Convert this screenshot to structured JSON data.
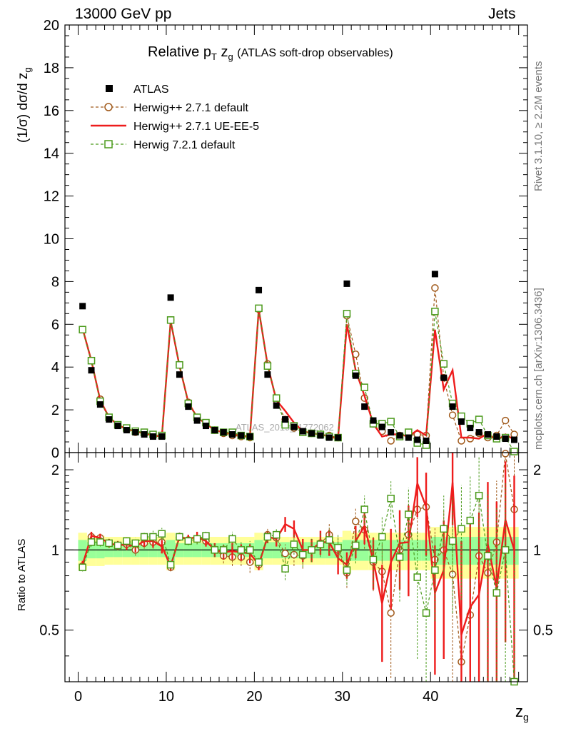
{
  "header": {
    "left": "13000 GeV pp",
    "right": "Jets"
  },
  "side_labels": {
    "rivet": "Rivet 3.1.10, ≥ 2.2M events",
    "mcplots": "mcplots.cern.ch [arXiv:1306.3436]"
  },
  "watermark": "ATLAS_2019_I1772062",
  "chart_data": {
    "type": "scatter",
    "title": "Relative pT zg (ATLAS soft-drop observables)",
    "title_main": "Relative p",
    "title_sub": "T",
    "title_mid": " z",
    "title_sub2": "g",
    "title_small": "(ATLAS soft-drop observables)",
    "xlabel": "z",
    "xlabel_sub": "g",
    "ylabel": "(1/σ) dσ/d z",
    "ylabel_sub": "g",
    "ratio_ylabel": "Ratio to ATLAS",
    "xlim": [
      -1.5,
      51
    ],
    "ylim": [
      0,
      20
    ],
    "ratio_ylim": [
      0.32,
      2.32
    ],
    "x_ticks": [
      0,
      10,
      20,
      30,
      40
    ],
    "y_ticks": [
      0,
      2,
      4,
      6,
      8,
      10,
      12,
      14,
      16,
      18,
      20
    ],
    "ratio_ticks": [
      0.5,
      1,
      2
    ],
    "ratio_tick_labels": [
      "0.5",
      "1",
      "2"
    ],
    "x": [
      0.5,
      1.5,
      2.5,
      3.5,
      4.5,
      5.5,
      6.5,
      7.5,
      8.5,
      9.5,
      10.5,
      11.5,
      12.5,
      13.5,
      14.5,
      15.5,
      16.5,
      17.5,
      18.5,
      19.5,
      20.5,
      21.5,
      22.5,
      23.5,
      24.5,
      25.5,
      26.5,
      27.5,
      28.5,
      29.5,
      30.5,
      31.5,
      32.5,
      33.5,
      34.5,
      35.5,
      36.5,
      37.5,
      38.5,
      39.5,
      40.5,
      41.5,
      42.5,
      43.5,
      44.5,
      45.5,
      46.5,
      47.5,
      48.5,
      49.5
    ],
    "grid": false,
    "legend_position": "top-left",
    "series": [
      {
        "name": "ATLAS",
        "style": "data",
        "color": "#000000",
        "values": [
          6.85,
          3.85,
          2.25,
          1.55,
          1.25,
          1.05,
          0.95,
          0.85,
          0.75,
          0.75,
          7.25,
          3.65,
          2.15,
          1.5,
          1.25,
          1.05,
          0.95,
          0.85,
          0.8,
          0.75,
          7.6,
          3.65,
          2.2,
          1.55,
          1.2,
          1.0,
          0.9,
          0.8,
          0.7,
          0.7,
          7.9,
          3.6,
          2.15,
          1.5,
          1.2,
          0.95,
          0.8,
          0.7,
          0.6,
          0.55,
          8.35,
          3.5,
          2.15,
          1.45,
          1.15,
          0.95,
          0.85,
          0.75,
          0.65,
          0.6
        ],
        "ratio_band_inner": [
          0.09,
          0.07,
          0.07,
          0.06,
          0.06,
          0.06,
          0.06,
          0.06,
          0.06,
          0.06,
          0.09,
          0.06,
          0.06,
          0.06,
          0.06,
          0.06,
          0.06,
          0.06,
          0.06,
          0.06,
          0.09,
          0.07,
          0.07,
          0.07,
          0.07,
          0.07,
          0.07,
          0.07,
          0.07,
          0.07,
          0.09,
          0.09,
          0.09,
          0.09,
          0.09,
          0.09,
          0.09,
          0.09,
          0.09,
          0.09,
          0.12,
          0.12,
          0.12,
          0.12,
          0.12,
          0.12,
          0.12,
          0.12,
          0.12,
          0.12
        ],
        "ratio_band_outer": [
          0.16,
          0.13,
          0.13,
          0.12,
          0.12,
          0.12,
          0.12,
          0.12,
          0.12,
          0.12,
          0.16,
          0.12,
          0.12,
          0.12,
          0.12,
          0.12,
          0.12,
          0.12,
          0.12,
          0.12,
          0.16,
          0.12,
          0.12,
          0.12,
          0.12,
          0.12,
          0.12,
          0.12,
          0.12,
          0.12,
          0.18,
          0.16,
          0.16,
          0.16,
          0.16,
          0.16,
          0.16,
          0.16,
          0.16,
          0.16,
          0.22,
          0.22,
          0.22,
          0.22,
          0.22,
          0.22,
          0.22,
          0.22,
          0.22,
          0.22
        ]
      },
      {
        "name": "Herwig++ 2.7.1 default",
        "style": "circle-dashed",
        "color": "#a0591a",
        "values": [
          5.75,
          4.3,
          2.5,
          1.65,
          1.3,
          1.1,
          0.95,
          0.9,
          0.8,
          0.8,
          6.2,
          4.1,
          2.35,
          1.65,
          1.35,
          1.05,
          0.9,
          0.8,
          0.75,
          0.7,
          6.7,
          4.15,
          2.45,
          1.55,
          1.15,
          0.95,
          0.9,
          0.85,
          0.8,
          0.7,
          6.4,
          4.6,
          2.55,
          1.35,
          1.0,
          0.55,
          0.8,
          0.8,
          0.85,
          0.8,
          7.7,
          3.5,
          1.75,
          0.55,
          0.65,
          0.9,
          0.7,
          0.8,
          1.5,
          0.85
        ],
        "ratio": [
          0.87,
          1.12,
          1.11,
          1.06,
          1.04,
          1.05,
          1.0,
          1.06,
          1.07,
          1.07,
          0.86,
          1.12,
          1.09,
          1.1,
          1.08,
          1.0,
          0.95,
          0.94,
          0.94,
          0.9,
          0.88,
          1.14,
          1.11,
          0.97,
          0.96,
          0.95,
          1.0,
          1.06,
          1.14,
          1.0,
          0.82,
          1.28,
          1.19,
          0.9,
          0.83,
          0.58,
          1.0,
          1.14,
          1.42,
          1.45,
          0.92,
          1.0,
          0.81,
          0.38,
          0.57,
          0.95,
          0.82,
          1.07,
          2.3,
          1.42
        ],
        "ratio_err": [
          0.03,
          0.04,
          0.04,
          0.04,
          0.04,
          0.05,
          0.05,
          0.05,
          0.06,
          0.06,
          0.03,
          0.04,
          0.04,
          0.05,
          0.05,
          0.06,
          0.06,
          0.07,
          0.07,
          0.08,
          0.04,
          0.06,
          0.07,
          0.08,
          0.09,
          0.1,
          0.1,
          0.11,
          0.12,
          0.12,
          0.1,
          0.15,
          0.18,
          0.2,
          0.22,
          0.25,
          0.3,
          0.35,
          0.4,
          0.45,
          0.3,
          0.4,
          0.5,
          0.55,
          0.6,
          0.65,
          0.7,
          0.75,
          0.8,
          0.85
        ]
      },
      {
        "name": "Herwig++ 2.7.1 UE-EE-5",
        "style": "line-solid",
        "color": "#ee1c1c",
        "values": [
          5.8,
          4.3,
          2.45,
          1.65,
          1.3,
          1.1,
          1.0,
          0.9,
          0.8,
          0.75,
          6.15,
          4.05,
          2.35,
          1.65,
          1.35,
          1.05,
          0.95,
          0.85,
          0.8,
          0.75,
          6.7,
          4.1,
          2.45,
          1.95,
          1.4,
          1.0,
          0.9,
          0.85,
          0.75,
          0.65,
          6.0,
          3.85,
          2.65,
          1.35,
          0.75,
          0.85,
          0.85,
          0.75,
          1.05,
          0.8,
          5.75,
          2.95,
          3.85,
          0.7,
          0.7,
          0.65,
          0.9,
          0.55,
          0.85,
          0.6
        ],
        "ratio": [
          0.88,
          1.13,
          1.11,
          1.06,
          1.04,
          1.05,
          1.03,
          1.08,
          1.08,
          1.03,
          0.87,
          1.12,
          1.1,
          1.12,
          1.08,
          1.0,
          0.98,
          0.99,
          0.98,
          0.97,
          0.88,
          1.12,
          1.1,
          1.25,
          1.2,
          1.0,
          1.0,
          1.07,
          1.07,
          0.93,
          0.88,
          1.08,
          1.23,
          0.91,
          0.63,
          0.9,
          1.06,
          1.07,
          1.78,
          1.45,
          0.69,
          0.84,
          1.79,
          0.48,
          0.61,
          0.68,
          1.05,
          0.72,
          1.3,
          1.0
        ],
        "ratio_err": [
          0.03,
          0.04,
          0.04,
          0.04,
          0.04,
          0.05,
          0.05,
          0.05,
          0.06,
          0.06,
          0.03,
          0.04,
          0.04,
          0.05,
          0.05,
          0.06,
          0.06,
          0.07,
          0.07,
          0.08,
          0.04,
          0.06,
          0.07,
          0.08,
          0.09,
          0.1,
          0.1,
          0.11,
          0.12,
          0.12,
          0.1,
          0.15,
          0.18,
          0.2,
          0.25,
          0.3,
          0.35,
          0.4,
          0.45,
          0.5,
          0.35,
          0.45,
          0.55,
          0.6,
          0.65,
          0.7,
          0.75,
          0.8,
          0.85,
          0.9
        ]
      },
      {
        "name": "Herwig 7.2.1 default",
        "style": "square-dashed",
        "color": "#4a9a1a",
        "values": [
          5.75,
          4.3,
          2.4,
          1.65,
          1.3,
          1.15,
          1.0,
          0.95,
          0.85,
          0.8,
          6.2,
          4.1,
          2.3,
          1.65,
          1.4,
          1.05,
          0.95,
          0.95,
          0.8,
          0.75,
          6.75,
          4.05,
          2.55,
          1.3,
          1.25,
          0.95,
          0.9,
          0.85,
          0.75,
          0.7,
          6.5,
          3.7,
          3.05,
          1.35,
          1.35,
          1.45,
          0.75,
          0.95,
          0.45,
          0.35,
          6.6,
          4.15,
          2.3,
          1.7,
          1.35,
          1.55,
          0.8,
          0.65,
          0.7,
          0.05
        ],
        "ratio": [
          0.86,
          1.07,
          1.07,
          1.06,
          1.04,
          1.08,
          1.06,
          1.12,
          1.12,
          1.15,
          0.88,
          1.12,
          1.08,
          1.1,
          1.13,
          1.0,
          1.0,
          1.1,
          1.0,
          1.0,
          0.9,
          1.12,
          1.14,
          0.85,
          1.05,
          0.96,
          1.0,
          1.05,
          1.09,
          1.02,
          0.84,
          1.04,
          1.42,
          0.92,
          1.12,
          1.56,
          0.94,
          1.36,
          0.79,
          0.58,
          0.84,
          1.2,
          1.08,
          1.2,
          1.29,
          1.6,
          0.95,
          0.69,
          1.0,
          0.1
        ],
        "ratio_err": [
          0.03,
          0.04,
          0.04,
          0.04,
          0.04,
          0.05,
          0.05,
          0.05,
          0.06,
          0.06,
          0.03,
          0.04,
          0.04,
          0.05,
          0.05,
          0.06,
          0.06,
          0.07,
          0.07,
          0.08,
          0.04,
          0.06,
          0.07,
          0.08,
          0.09,
          0.1,
          0.1,
          0.11,
          0.12,
          0.12,
          0.1,
          0.15,
          0.18,
          0.2,
          0.22,
          0.25,
          0.3,
          0.35,
          0.4,
          0.45,
          0.3,
          0.4,
          0.5,
          0.55,
          0.6,
          0.65,
          0.7,
          0.75,
          0.8,
          0.85
        ]
      }
    ]
  }
}
